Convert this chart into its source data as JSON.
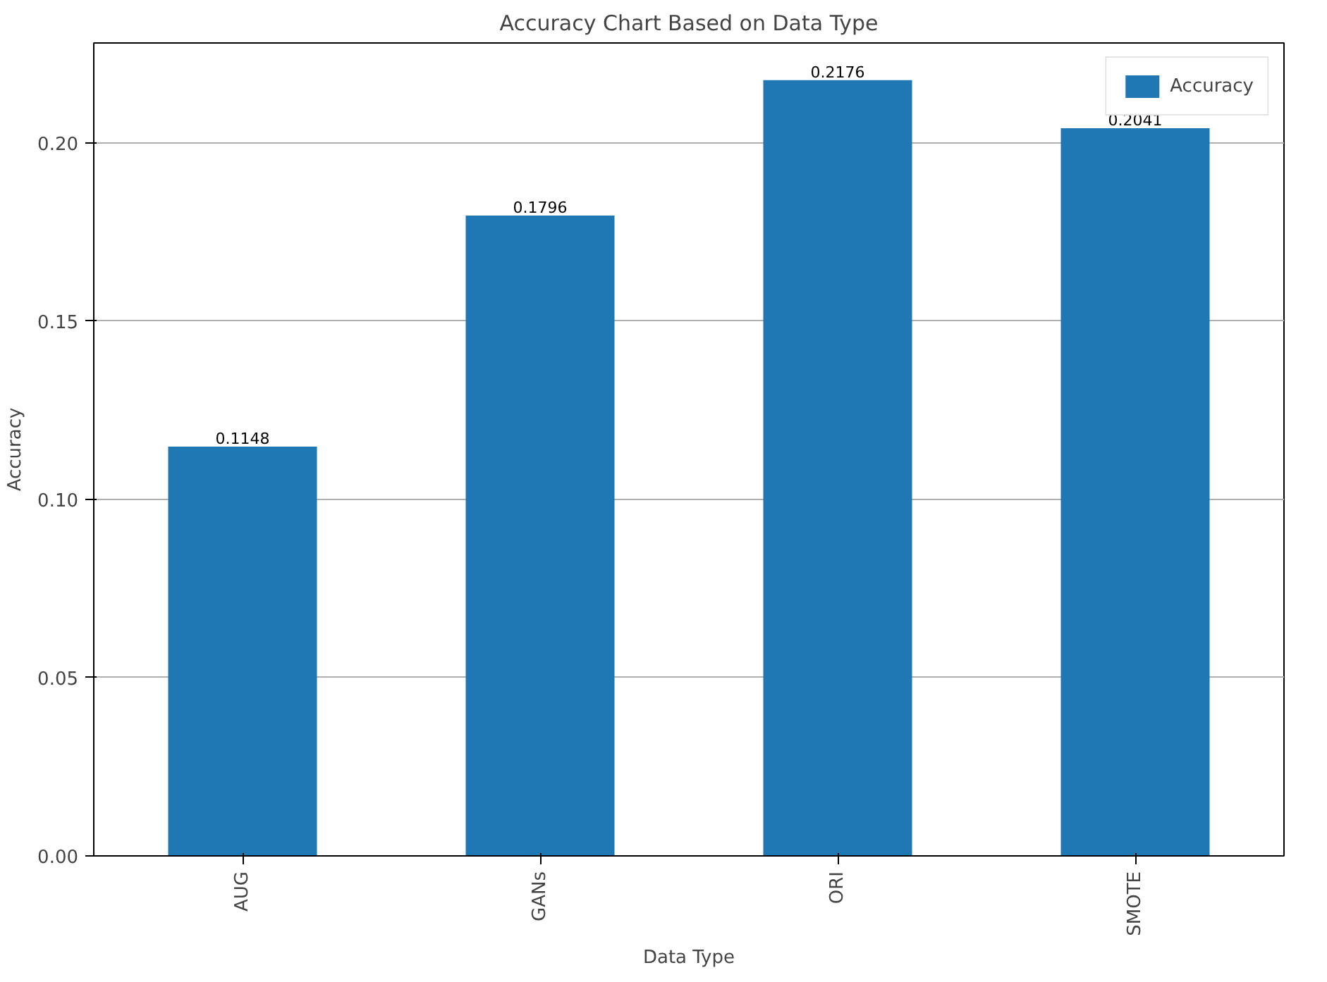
{
  "chart_data": {
    "type": "bar",
    "title": "Accuracy Chart Based on Data Type",
    "xlabel": "Data Type",
    "ylabel": "Accuracy",
    "categories": [
      "AUG",
      "GANs",
      "ORI",
      "SMOTE"
    ],
    "series": [
      {
        "name": "Accuracy",
        "color": "#1f77b4",
        "values": [
          0.1148,
          0.1796,
          0.2176,
          0.2041
        ]
      }
    ],
    "ylim": [
      0,
      0.228
    ],
    "yticks": [
      {
        "value": 0,
        "label": "0.00"
      },
      {
        "value": 0.05,
        "label": "0.05"
      },
      {
        "value": 0.1,
        "label": "0.10"
      },
      {
        "value": 0.15,
        "label": "0.15"
      },
      {
        "value": 0.2,
        "label": "0.20"
      }
    ],
    "grid": "y",
    "legend": "top right",
    "data_labels": true
  }
}
